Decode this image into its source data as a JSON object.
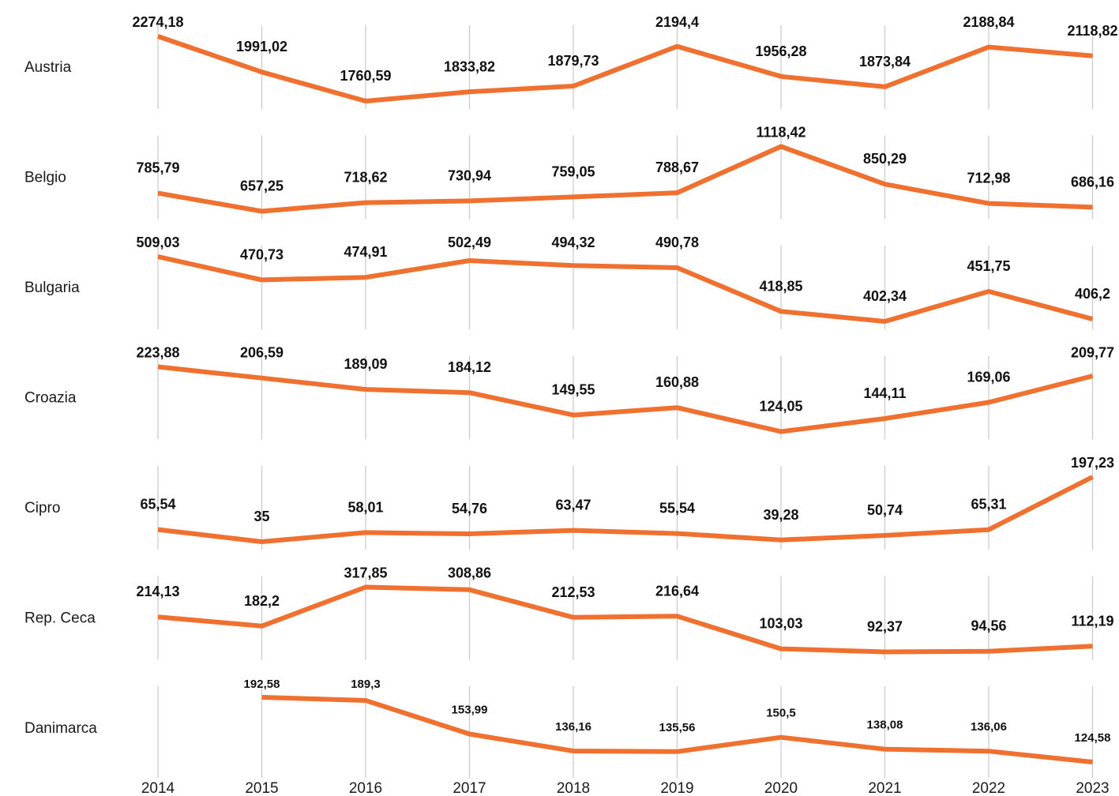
{
  "chart_data": {
    "type": "line",
    "layout": "small-multiples",
    "x": [
      "2014",
      "2015",
      "2016",
      "2017",
      "2018",
      "2019",
      "2020",
      "2021",
      "2022",
      "2023"
    ],
    "grid": "vertical",
    "line_color": "#f07030",
    "series": [
      {
        "name": "Austria",
        "values": [
          2274.18,
          1991.02,
          1760.59,
          1833.82,
          1879.73,
          2194.4,
          1956.28,
          1873.84,
          2188.84,
          2118.82
        ],
        "labels": [
          "2274,18",
          "1991,02",
          "1760,59",
          "1833,82",
          "1879,73",
          "2194,4",
          "1956,28",
          "1873,84",
          "2188,84",
          "2118,82"
        ]
      },
      {
        "name": "Belgio",
        "values": [
          785.79,
          657.25,
          718.62,
          730.94,
          759.05,
          788.67,
          1118.42,
          850.29,
          712.98,
          686.16
        ],
        "labels": [
          "785,79",
          "657,25",
          "718,62",
          "730,94",
          "759,05",
          "788,67",
          "1118,42",
          "850,29",
          "712,98",
          "686,16"
        ]
      },
      {
        "name": "Bulgaria",
        "values": [
          509.03,
          470.73,
          474.91,
          502.49,
          494.32,
          490.78,
          418.85,
          402.34,
          451.75,
          406.2
        ],
        "labels": [
          "509,03",
          "470,73",
          "474,91",
          "502,49",
          "494,32",
          "490,78",
          "418,85",
          "402,34",
          "451,75",
          "406,2"
        ]
      },
      {
        "name": "Croazia",
        "values": [
          223.88,
          206.59,
          189.09,
          184.12,
          149.55,
          160.88,
          124.05,
          144.11,
          169.06,
          209.77
        ],
        "labels": [
          "223,88",
          "206,59",
          "189,09",
          "184,12",
          "149,55",
          "160,88",
          "124,05",
          "144,11",
          "169,06",
          "209,77"
        ]
      },
      {
        "name": "Cipro",
        "values": [
          65.54,
          35,
          58.01,
          54.76,
          63.47,
          55.54,
          39.28,
          50.74,
          65.31,
          197.23
        ],
        "labels": [
          "65,54",
          "35",
          "58,01",
          "54,76",
          "63,47",
          "55,54",
          "39,28",
          "50,74",
          "65,31",
          "197,23"
        ]
      },
      {
        "name": "Rep. Ceca",
        "values": [
          214.13,
          182.2,
          317.85,
          308.86,
          212.53,
          216.64,
          103.03,
          92.37,
          94.56,
          112.19
        ],
        "labels": [
          "214,13",
          "182,2",
          "317,85",
          "308,86",
          "212,53",
          "216,64",
          "103,03",
          "92,37",
          "94,56",
          "112,19"
        ]
      },
      {
        "name": "Danimarca",
        "values": [
          null,
          192.58,
          189.3,
          153.99,
          136.16,
          135.56,
          150.5,
          138.08,
          136.06,
          124.58
        ],
        "labels": [
          "",
          "192,58",
          "189,3",
          "153,99",
          "136,16",
          "135,56",
          "150,5",
          "138,08",
          "136,06",
          "124,58"
        ]
      }
    ]
  }
}
